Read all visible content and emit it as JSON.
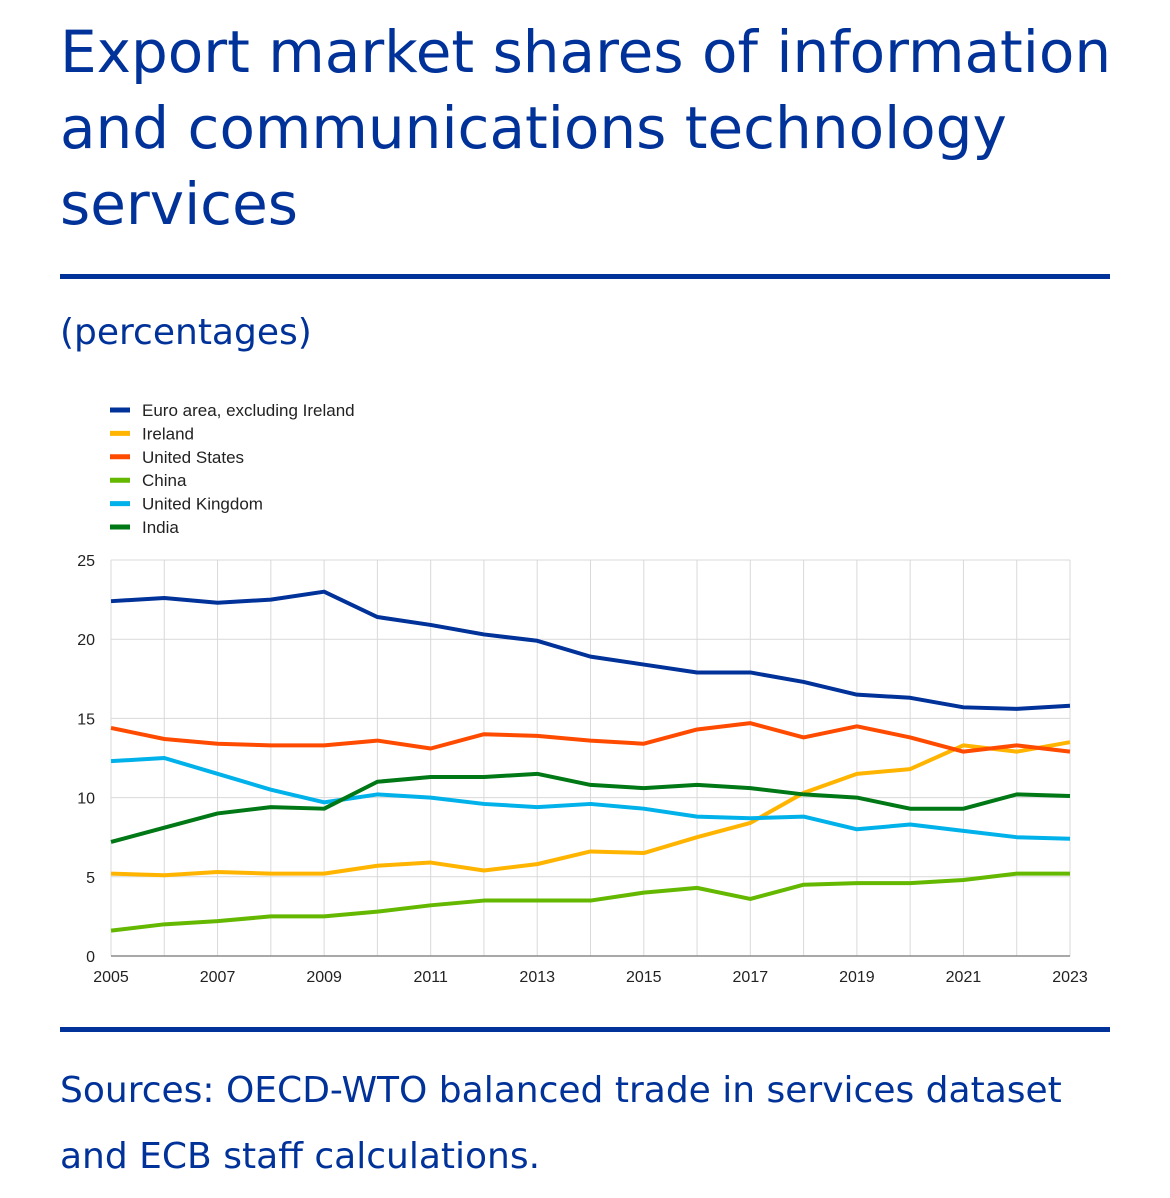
{
  "title": "Export market shares of information and communications technology services",
  "subtitle": "(percentages)",
  "sources": "Sources: OECD-WTO balanced trade in services dataset and ECB staff calculations.",
  "chart_data": {
    "type": "line",
    "title": "Export market shares of information and communications technology services",
    "subtitle": "(percentages)",
    "xlabel": "",
    "ylabel": "",
    "x": [
      2005,
      2006,
      2007,
      2008,
      2009,
      2010,
      2011,
      2012,
      2013,
      2014,
      2015,
      2016,
      2017,
      2018,
      2019,
      2020,
      2021,
      2022,
      2023
    ],
    "x_ticks": [
      "2005",
      "2007",
      "2009",
      "2011",
      "2013",
      "2015",
      "2017",
      "2019",
      "2021",
      "2023"
    ],
    "y_ticks": [
      "0",
      "5",
      "10",
      "15",
      "20",
      "25"
    ],
    "xlim": [
      2005,
      2023
    ],
    "ylim": [
      0,
      25
    ],
    "grid": true,
    "legend_position": "top-left",
    "series": [
      {
        "name": "Euro area, excluding Ireland",
        "color": "#003299",
        "values": [
          22.4,
          22.6,
          22.3,
          22.5,
          23.0,
          21.4,
          20.9,
          20.3,
          19.9,
          18.9,
          18.4,
          17.9,
          17.9,
          17.3,
          16.5,
          16.3,
          15.7,
          15.6,
          15.8
        ]
      },
      {
        "name": "Ireland",
        "color": "#FFB400",
        "values": [
          5.2,
          5.1,
          5.3,
          5.2,
          5.2,
          5.7,
          5.9,
          5.4,
          5.8,
          6.6,
          6.5,
          7.5,
          8.4,
          10.3,
          11.5,
          11.8,
          13.3,
          12.9,
          13.5
        ]
      },
      {
        "name": "United States",
        "color": "#FF4B00",
        "values": [
          14.4,
          13.7,
          13.4,
          13.3,
          13.3,
          13.6,
          13.1,
          14.0,
          13.9,
          13.6,
          13.4,
          14.3,
          14.7,
          13.8,
          14.5,
          13.8,
          12.9,
          13.3,
          12.9
        ]
      },
      {
        "name": "China",
        "color": "#65B800",
        "values": [
          1.6,
          2.0,
          2.2,
          2.5,
          2.5,
          2.8,
          3.2,
          3.5,
          3.5,
          3.5,
          4.0,
          4.3,
          3.6,
          4.5,
          4.6,
          4.6,
          4.8,
          5.2,
          5.2
        ]
      },
      {
        "name": "United Kingdom",
        "color": "#00B1EA",
        "values": [
          12.3,
          12.5,
          11.5,
          10.5,
          9.7,
          10.2,
          10.0,
          9.6,
          9.4,
          9.6,
          9.3,
          8.8,
          8.7,
          8.8,
          8.0,
          8.3,
          7.9,
          7.5,
          7.4
        ]
      },
      {
        "name": "India",
        "color": "#007816",
        "values": [
          7.2,
          8.1,
          9.0,
          9.4,
          9.3,
          11.0,
          11.3,
          11.3,
          11.5,
          10.8,
          10.6,
          10.8,
          10.6,
          10.2,
          10.0,
          9.3,
          9.3,
          10.2,
          10.1
        ]
      }
    ]
  }
}
